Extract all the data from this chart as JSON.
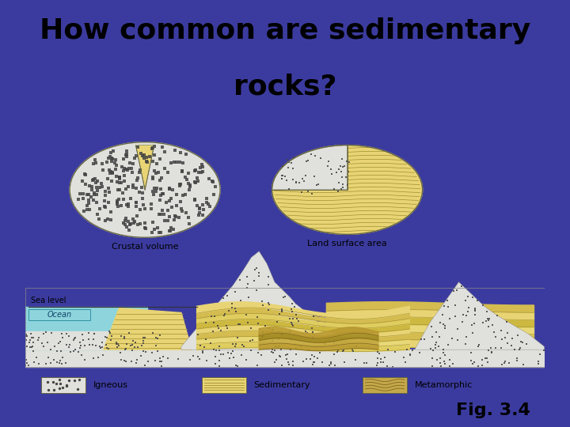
{
  "title_line1": "How common are sedimentary",
  "title_line2": "rocks?",
  "fig_label": "Fig. 3.4",
  "background_color": "#3b3b9f",
  "panel_bg": "#ffffff",
  "title_fontsize": 26,
  "fig_label_fontsize": 16,
  "crustal_label": "Crustal volume",
  "land_label": "Land surface area",
  "sea_level_label": "Sea level",
  "ocean_label": "Ocean",
  "legend_items": [
    "Igneous",
    "Sedimentary",
    "Metamorphic"
  ],
  "igneous_color": "#e0e0dc",
  "sedimentary_color": "#e8d474",
  "metamorphic_color": "#c4a84a",
  "ocean_color": "#8dd4dc",
  "dot_color": "#444444"
}
